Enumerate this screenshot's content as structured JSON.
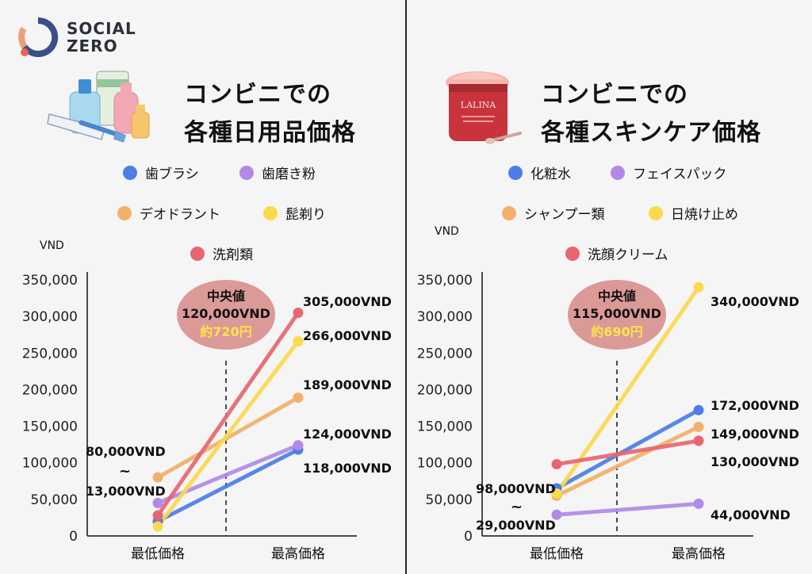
{
  "brand": {
    "line1": "SOCIAL",
    "line2": "ZERO"
  },
  "colors": {
    "blue": "#4c7ee6",
    "purple": "#b18ae8",
    "orange": "#f1b168",
    "yellow": "#fbd94c",
    "red": "#e8666f",
    "median": "#d68a86"
  },
  "left_panel": {
    "title_line1": "コンビニでの",
    "title_line2": "各種日用品価格",
    "unit": "VND"
  },
  "right_panel": {
    "title_line1": "コンビニでの",
    "title_line2": "各種スキンケア価格",
    "unit": "VND"
  },
  "chart_data": [
    {
      "type": "line",
      "title": "コンビニでの各種日用品価格",
      "ylabel": "VND",
      "ylim": [
        0,
        350000
      ],
      "yticks": [
        "0",
        "50,000",
        "100,000",
        "150,000",
        "200,000",
        "250,000",
        "300,000",
        "350,000"
      ],
      "categories": [
        "最低価格",
        "最高価格"
      ],
      "series": [
        {
          "name": "歯ブラシ",
          "color": "blue",
          "values": [
            20000,
            118000
          ]
        },
        {
          "name": "歯磨き粉",
          "color": "purple",
          "values": [
            45000,
            124000
          ]
        },
        {
          "name": "デオドラント",
          "color": "orange",
          "values": [
            80000,
            189000
          ]
        },
        {
          "name": "髭剃り",
          "color": "yellow",
          "values": [
            13000,
            266000
          ]
        },
        {
          "name": "洗剤類",
          "color": "red",
          "values": [
            28000,
            305000
          ]
        }
      ],
      "value_labels": [
        {
          "text": "305,000VND",
          "series": 4,
          "end": 1
        },
        {
          "text": "266,000VND",
          "series": 3,
          "end": 1
        },
        {
          "text": "189,000VND",
          "series": 2,
          "end": 1
        },
        {
          "text": "124,000VND",
          "series": 1,
          "end": 1
        },
        {
          "text": "118,000VND",
          "series": 0,
          "end": 1
        }
      ],
      "range_labels": {
        "top": "80,000VND",
        "tilde": "~",
        "bottom": "13,000VND"
      },
      "median": {
        "label": "中央値",
        "value": "120,000VND",
        "yen": "約720円"
      }
    },
    {
      "type": "line",
      "title": "コンビニでの各種スキンケア価格",
      "ylabel": "VND",
      "ylim": [
        0,
        350000
      ],
      "yticks": [
        "0",
        "50,000",
        "100,000",
        "150,000",
        "200,000",
        "250,000",
        "300,000",
        "350,000"
      ],
      "categories": [
        "最低価格",
        "最高価格"
      ],
      "series": [
        {
          "name": "化粧水",
          "color": "blue",
          "values": [
            65000,
            172000
          ]
        },
        {
          "name": "フェイスパック",
          "color": "purple",
          "values": [
            29000,
            44000
          ]
        },
        {
          "name": "シャンプー類",
          "color": "orange",
          "values": [
            55000,
            149000
          ]
        },
        {
          "name": "日焼け止め",
          "color": "yellow",
          "values": [
            58000,
            340000
          ]
        },
        {
          "name": "洗顔クリーム",
          "color": "red",
          "values": [
            98000,
            130000
          ]
        }
      ],
      "value_labels": [
        {
          "text": "340,000VND",
          "series": 3,
          "end": 1
        },
        {
          "text": "172,000VND",
          "series": 0,
          "end": 1
        },
        {
          "text": "149,000VND",
          "series": 2,
          "end": 1
        },
        {
          "text": "130,000VND",
          "series": 4,
          "end": 1
        },
        {
          "text": "44,000VND",
          "series": 1,
          "end": 1
        }
      ],
      "range_labels": {
        "top": "98,000VND",
        "tilde": "~",
        "bottom": "29,000VND"
      },
      "median": {
        "label": "中央値",
        "value": "115,000VND",
        "yen": "約690円"
      }
    }
  ]
}
